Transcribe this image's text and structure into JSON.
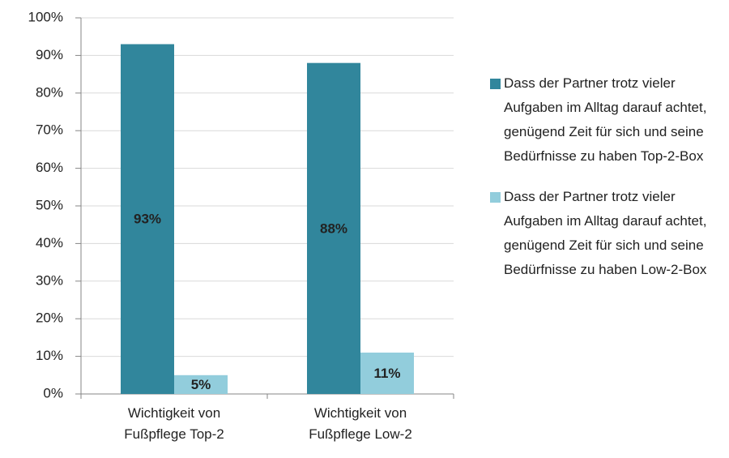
{
  "chart_data": {
    "type": "bar",
    "categories": [
      "Wichtigkeit von Fußpflege Top-2",
      "Wichtigkeit von Fußpflege Low-2"
    ],
    "series": [
      {
        "name": "Dass der Partner trotz vieler Aufgaben im Alltag darauf achtet, genügend Zeit für sich und seine Bedürfnisse zu haben Top-2-Box",
        "color": "#31869c",
        "values": [
          93,
          88
        ],
        "value_labels": [
          "93%",
          "88%"
        ]
      },
      {
        "name": "Dass der Partner trotz vieler Aufgaben im Alltag darauf achtet, genügend Zeit für sich und seine Bedürfnisse zu haben Low-2-Box",
        "color": "#92cddc",
        "values": [
          5,
          11
        ],
        "value_labels": [
          "5%",
          "11%"
        ]
      }
    ],
    "ylim": [
      0,
      100
    ],
    "yticks": [
      {
        "value": 0,
        "label": "0%"
      },
      {
        "value": 10,
        "label": "10%"
      },
      {
        "value": 20,
        "label": "20%"
      },
      {
        "value": 30,
        "label": "30%"
      },
      {
        "value": 40,
        "label": "40%"
      },
      {
        "value": 50,
        "label": "50%"
      },
      {
        "value": 60,
        "label": "60%"
      },
      {
        "value": 70,
        "label": "70%"
      },
      {
        "value": 80,
        "label": "80%"
      },
      {
        "value": 90,
        "label": "90%"
      },
      {
        "value": 100,
        "label": "100%"
      }
    ],
    "grid": true,
    "legend": "right"
  }
}
